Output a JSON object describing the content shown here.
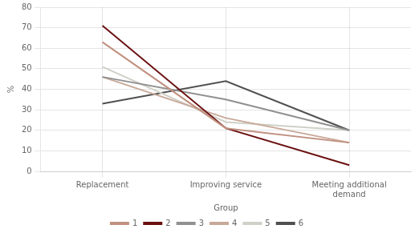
{
  "chart_data": {
    "type": "line",
    "categories": [
      "Replacement",
      "Improving service",
      "Meeting additional\ndemand"
    ],
    "series": [
      {
        "name": "1",
        "color": "#c09080",
        "values": [
          63,
          21,
          14
        ]
      },
      {
        "name": "2",
        "color": "#6b1010",
        "values": [
          71,
          21,
          3
        ]
      },
      {
        "name": "3",
        "color": "#909090",
        "values": [
          46,
          35,
          20
        ]
      },
      {
        "name": "4",
        "color": "#c8a898",
        "values": [
          46,
          26,
          14
        ]
      },
      {
        "name": "5",
        "color": "#d0d0c8",
        "values": [
          51,
          24,
          20
        ]
      },
      {
        "name": "6",
        "color": "#505050",
        "values": [
          33,
          44,
          20
        ]
      }
    ],
    "xlabel": "Group",
    "ylabel": "%",
    "ylim": [
      0,
      80
    ],
    "yticks": [
      0,
      10,
      20,
      30,
      40,
      50,
      60,
      70,
      80
    ],
    "grid": true,
    "legend": "bottom"
  }
}
